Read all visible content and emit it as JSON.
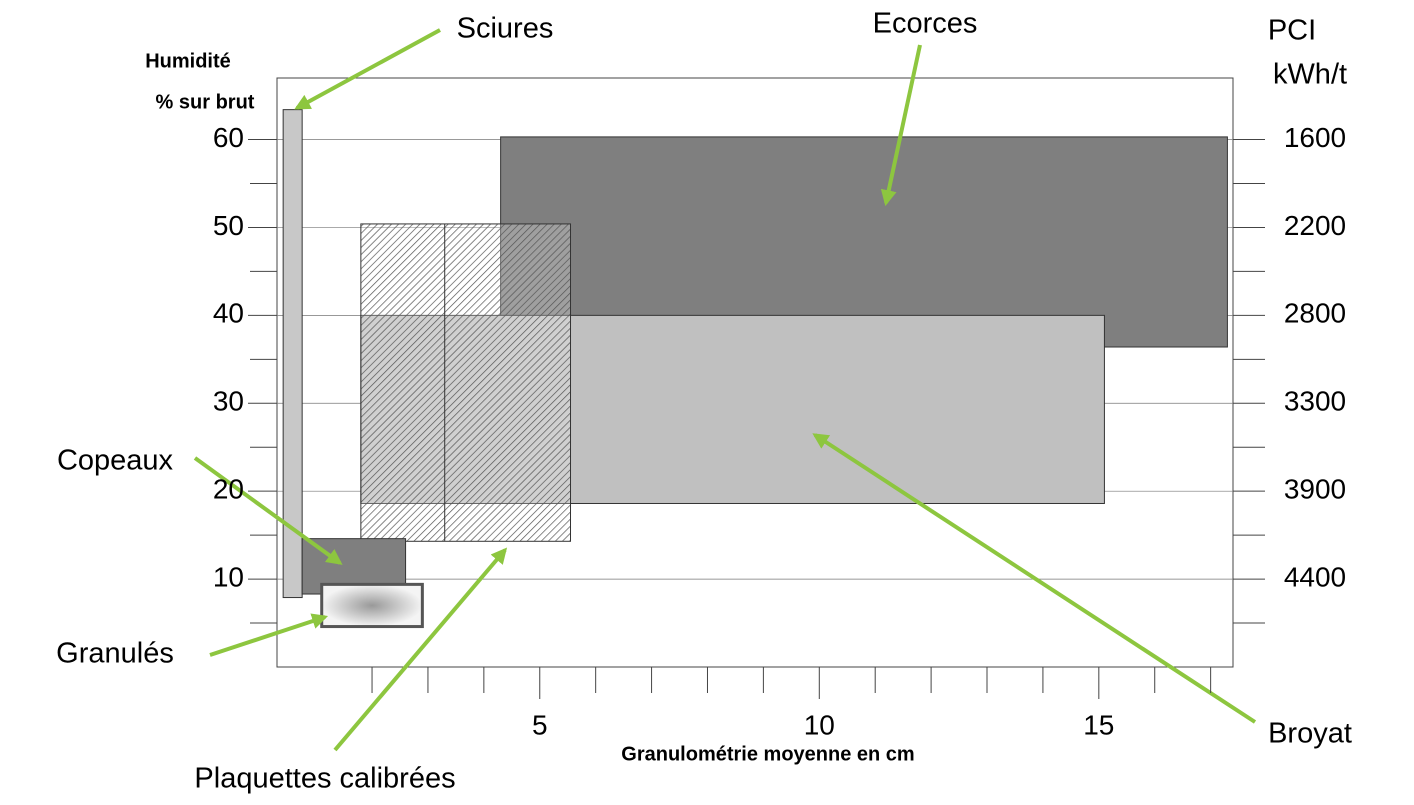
{
  "chart_data": {
    "type": "range",
    "ylabel": [
      "Humidité",
      "% sur brut"
    ],
    "y2label": [
      "PCI",
      "kWh/t"
    ],
    "xlabel": "Granulométrie moyenne en cm",
    "xlim": [
      0.3,
      17.4
    ],
    "xticks": [
      5,
      10,
      15
    ],
    "xminor_ticks": [
      2,
      3,
      4,
      6,
      7,
      8,
      9,
      11,
      12,
      13,
      14,
      16,
      17
    ],
    "ylim": [
      0,
      67
    ],
    "yticks": [
      10,
      20,
      30,
      40,
      50,
      60
    ],
    "yminor_ticks": [
      5,
      15,
      25,
      35,
      45,
      55
    ],
    "y2ticks": [
      {
        "value": 10,
        "label": "4400"
      },
      {
        "value": 20,
        "label": "3900"
      },
      {
        "value": 30,
        "label": "3300"
      },
      {
        "value": 40,
        "label": "2800"
      },
      {
        "value": 50,
        "label": "2200"
      },
      {
        "value": 60,
        "label": "1600"
      }
    ],
    "grid": true,
    "series": [
      {
        "name": "Ecorces",
        "color": "#7f7f7f",
        "x": [
          4.3,
          17.3
        ],
        "y": [
          36.4,
          60.3
        ]
      },
      {
        "name": "Broyat",
        "color": "#c0c0c0",
        "x": [
          1.8,
          15.1
        ],
        "y": [
          18.6,
          40
        ]
      },
      {
        "name": "Plaquettes calibrées",
        "color": "#ffffff",
        "pattern": "hatch",
        "x": [
          1.8,
          5.55
        ],
        "y": [
          14.3,
          50.4
        ]
      },
      {
        "name": "Sciures",
        "color": "#c8c8c8",
        "x": [
          0.41,
          0.75
        ],
        "y": [
          7.9,
          63.4
        ]
      },
      {
        "name": "Copeaux",
        "color": "#7f7f7f",
        "x": [
          0.75,
          2.6
        ],
        "y": [
          8.3,
          14.6
        ]
      },
      {
        "name": "Granulés",
        "color": "#e0e0e0",
        "x": [
          1.1,
          2.9
        ],
        "y": [
          4.6,
          9.4
        ]
      }
    ]
  }
}
